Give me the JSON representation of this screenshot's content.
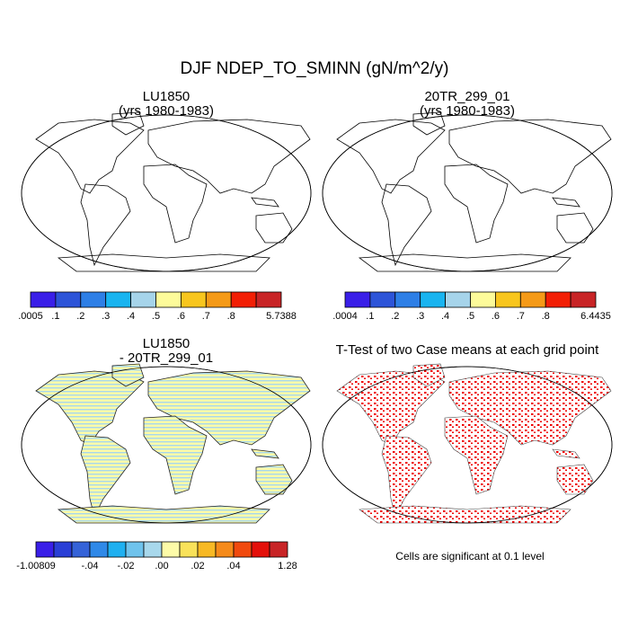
{
  "title": "DJF NDEP_TO_SMINN (gN/m^2/y)",
  "panels": [
    {
      "title": [
        "LU1850",
        "(yrs 1980-1983)"
      ],
      "colorbar": {
        "colors": [
          "#3a1fe8",
          "#2d54d8",
          "#2e7fe6",
          "#19b4f0",
          "#a6d4ea",
          "#fdfb9a",
          "#f8c61e",
          "#f59a17",
          "#f21f05",
          "#c82426"
        ],
        "labels": [
          ".0005",
          ".1",
          ".2",
          ".3",
          ".4",
          ".5",
          ".6",
          ".7",
          ".8",
          null,
          "5.7388"
        ]
      }
    },
    {
      "title": [
        "20TR_299_01",
        "(yrs 1980-1983)"
      ],
      "colorbar": {
        "colors": [
          "#3a1fe8",
          "#2d54d8",
          "#2e7fe6",
          "#19b4f0",
          "#a6d4ea",
          "#fdfb9a",
          "#f8c61e",
          "#f59a17",
          "#f21f05",
          "#c82426"
        ],
        "labels": [
          ".0004",
          ".1",
          ".2",
          ".3",
          ".4",
          ".5",
          ".6",
          ".7",
          ".8",
          null,
          "6.4435"
        ]
      }
    },
    {
      "title": [
        "LU1850",
        "- 20TR_299_01"
      ],
      "colorbar": {
        "colors": [
          "#3a1fe8",
          "#2a3fd6",
          "#3563d8",
          "#2f89e8",
          "#1fb0f0",
          "#6fc3ec",
          "#a8d8ec",
          "#fdfba8",
          "#f9e25a",
          "#f7b924",
          "#f58a1a",
          "#f14a0e",
          "#e4100a",
          "#c82426"
        ],
        "labels": [
          "-1.00809",
          null,
          null,
          "-.04",
          null,
          "-.02",
          null,
          ".00",
          null,
          ".02",
          null,
          ".04",
          null,
          null,
          "1.28"
        ]
      }
    },
    {
      "title": [
        "T-Test of two Case means at each grid point"
      ],
      "note": "Cells are significant at 0.1 level"
    }
  ]
}
